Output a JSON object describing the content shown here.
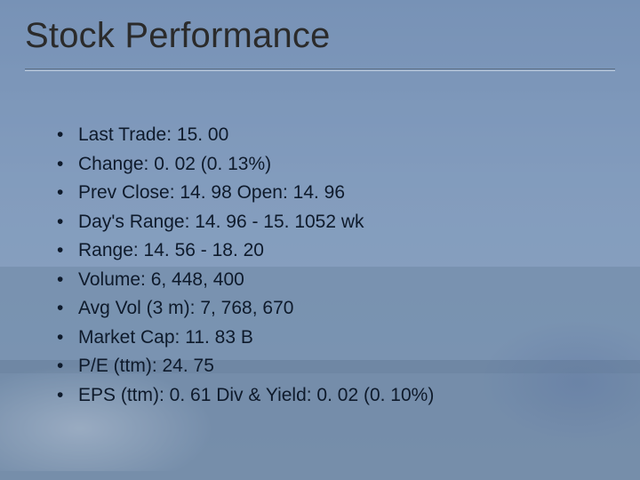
{
  "slide": {
    "title": "Stock Performance",
    "title_color": "#2b2b2b",
    "title_fontsize_pt": 30,
    "text_color": "#0e1a2b",
    "bullet_fontsize_pt": 16,
    "divider_top_color": "#5d6e82",
    "divider_bottom_color": "#c8d3e0",
    "background_gradient": [
      "#88a0c2",
      "#9ab0cd",
      "#a8bcd3"
    ],
    "bullets": [
      "Last Trade: 15. 00",
      "Change:  0. 02 (0. 13%)",
      "Prev Close: 14. 98        Open: 14. 96",
      "Day's Range: 14. 96 - 15. 1052 wk",
      "Range: 14. 56 - 18. 20",
      "Volume: 6, 448, 400",
      "Avg Vol (3 m): 7, 768, 670",
      "Market Cap: 11. 83 B",
      "P/E (ttm): 24. 75",
      "EPS (ttm): 0. 61 Div & Yield: 0. 02 (0. 10%)"
    ]
  }
}
